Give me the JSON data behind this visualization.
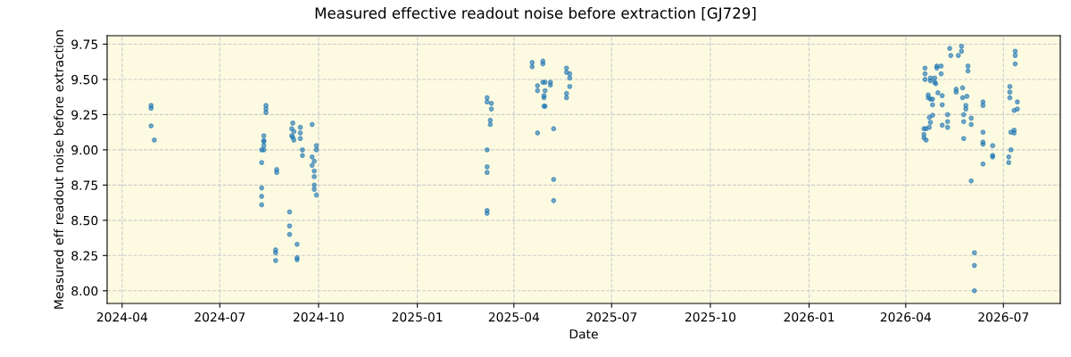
{
  "chart_data": {
    "type": "scatter",
    "title": "Measured effective readout noise before extraction [GJ729]",
    "xlabel": "Date",
    "ylabel": "Measured eff readout noise before extraction",
    "xlim": [
      "2024-03-18",
      "2026-08-23"
    ],
    "ylim": [
      7.91,
      9.81
    ],
    "xticks": [
      {
        "value": "2024-04-01",
        "label": "2024-04"
      },
      {
        "value": "2024-07-01",
        "label": "2024-07"
      },
      {
        "value": "2024-10-01",
        "label": "2024-10"
      },
      {
        "value": "2025-01-01",
        "label": "2025-01"
      },
      {
        "value": "2025-04-01",
        "label": "2025-04"
      },
      {
        "value": "2025-07-01",
        "label": "2025-07"
      },
      {
        "value": "2025-10-01",
        "label": "2025-10"
      },
      {
        "value": "2026-01-01",
        "label": "2026-01"
      },
      {
        "value": "2026-04-01",
        "label": "2026-04"
      },
      {
        "value": "2026-07-01",
        "label": "2026-07"
      }
    ],
    "yticks": [
      {
        "value": 8.0,
        "label": "8.00"
      },
      {
        "value": 8.25,
        "label": "8.25"
      },
      {
        "value": 8.5,
        "label": "8.50"
      },
      {
        "value": 8.75,
        "label": "8.75"
      },
      {
        "value": 9.0,
        "label": "9.00"
      },
      {
        "value": 9.25,
        "label": "9.25"
      },
      {
        "value": 9.5,
        "label": "9.50"
      },
      {
        "value": 9.75,
        "label": "9.75"
      }
    ],
    "grid": true,
    "marker": "circle",
    "legend": false,
    "series": [
      {
        "color": "#1f77b4",
        "x": [
          "2024-04-28",
          "2024-04-28",
          "2024-04-28",
          "2024-05-01",
          "2024-08-13",
          "2024-08-13",
          "2024-08-13",
          "2024-08-11",
          "2024-08-11",
          "2024-08-11",
          "2024-08-11",
          "2024-08-09",
          "2024-08-11",
          "2024-08-09",
          "2024-08-09",
          "2024-08-09",
          "2024-08-09",
          "2024-08-23",
          "2024-08-23",
          "2024-09-07",
          "2024-09-06",
          "2024-09-08",
          "2024-09-06",
          "2024-09-07",
          "2024-09-08",
          "2024-09-14",
          "2024-09-14",
          "2024-09-14",
          "2024-09-16",
          "2024-09-16",
          "2024-09-25",
          "2024-09-29",
          "2024-09-29",
          "2024-09-25",
          "2024-09-27",
          "2024-09-25",
          "2024-09-27",
          "2024-09-27",
          "2024-09-27",
          "2024-09-27",
          "2024-09-29",
          "2024-09-04",
          "2024-09-04",
          "2024-09-04",
          "2024-09-11",
          "2024-09-11",
          "2024-09-11",
          "2024-08-22",
          "2024-08-22",
          "2024-08-22",
          "2025-03-07",
          "2025-03-07",
          "2025-03-11",
          "2025-03-11",
          "2025-03-10",
          "2025-03-10",
          "2025-03-07",
          "2025-03-07",
          "2025-03-07",
          "2025-03-07",
          "2025-03-07",
          "2025-04-18",
          "2025-04-18",
          "2025-04-28",
          "2025-04-28",
          "2025-04-23",
          "2025-04-23",
          "2025-04-28",
          "2025-04-30",
          "2025-04-30",
          "2025-04-29",
          "2025-04-29",
          "2025-04-29",
          "2025-04-30",
          "2025-05-05",
          "2025-05-05",
          "2025-04-23",
          "2025-05-08",
          "2025-05-08",
          "2025-05-08",
          "2025-05-20",
          "2025-05-20",
          "2025-05-23",
          "2025-05-23",
          "2025-05-23",
          "2025-05-20",
          "2025-05-20",
          "2026-04-19",
          "2026-04-19",
          "2026-04-19",
          "2026-04-18",
          "2026-04-18",
          "2026-04-18",
          "2026-04-20",
          "2026-04-20",
          "2026-04-22",
          "2026-04-22",
          "2026-04-23",
          "2026-04-23",
          "2026-04-24",
          "2026-04-24",
          "2026-04-26",
          "2026-04-26",
          "2026-04-26",
          "2026-04-24",
          "2026-04-24",
          "2026-04-28",
          "2026-04-28",
          "2026-04-29",
          "2026-04-30",
          "2026-04-30",
          "2026-05-04",
          "2026-05-04",
          "2026-05-01",
          "2026-05-05",
          "2026-05-05",
          "2026-05-05",
          "2026-05-10",
          "2026-05-10",
          "2026-05-10",
          "2026-05-12",
          "2026-05-13",
          "2026-05-20",
          "2026-05-23",
          "2026-05-23",
          "2026-05-18",
          "2026-05-18",
          "2026-05-24",
          "2026-05-24",
          "2026-05-25",
          "2026-05-25",
          "2026-05-25",
          "2026-05-27",
          "2026-05-27",
          "2026-05-28",
          "2026-05-29",
          "2026-05-29",
          "2026-06-01",
          "2026-06-01",
          "2026-06-01",
          "2026-06-04",
          "2026-06-04",
          "2026-06-04",
          "2026-06-12",
          "2026-06-12",
          "2026-06-12",
          "2026-06-12",
          "2026-06-12",
          "2026-06-12",
          "2026-06-21",
          "2026-06-21",
          "2026-06-21",
          "2026-07-07",
          "2026-07-07",
          "2026-07-07",
          "2026-07-11",
          "2026-07-14",
          "2026-07-14",
          "2026-07-12",
          "2026-07-12",
          "2026-07-12",
          "2026-07-08",
          "2026-07-11",
          "2026-07-11",
          "2026-07-08",
          "2026-07-06",
          "2026-07-06"
        ],
        "values": [
          9.315,
          9.296,
          9.17,
          9.07,
          9.315,
          9.29,
          9.265,
          9.1,
          9.065,
          9.06,
          9.03,
          9.0,
          9.0,
          8.91,
          8.73,
          8.67,
          8.61,
          8.86,
          8.84,
          9.19,
          9.15,
          9.13,
          9.1,
          9.09,
          9.07,
          9.16,
          9.12,
          9.08,
          9.0,
          8.96,
          9.18,
          9.03,
          9.0,
          8.95,
          8.92,
          8.89,
          8.85,
          8.81,
          8.75,
          8.72,
          8.68,
          8.56,
          8.46,
          8.4,
          8.33,
          8.235,
          8.22,
          8.29,
          8.27,
          8.215,
          9.37,
          9.34,
          9.33,
          9.29,
          9.21,
          9.18,
          9.0,
          8.88,
          8.84,
          8.57,
          8.55,
          9.62,
          9.59,
          9.63,
          9.61,
          9.455,
          9.42,
          9.48,
          9.48,
          9.42,
          9.385,
          9.37,
          9.31,
          9.31,
          9.48,
          9.46,
          9.12,
          9.15,
          8.79,
          8.64,
          9.58,
          9.55,
          9.54,
          9.51,
          9.45,
          9.4,
          9.37,
          9.58,
          9.54,
          9.5,
          9.15,
          9.11,
          9.085,
          9.07,
          9.15,
          9.39,
          9.37,
          9.16,
          9.23,
          9.195,
          9.36,
          9.32,
          9.36,
          9.245,
          9.51,
          9.49,
          9.51,
          9.48,
          9.47,
          9.595,
          9.58,
          9.595,
          9.54,
          9.405,
          9.385,
          9.32,
          9.175,
          9.25,
          9.2,
          9.16,
          9.72,
          9.67,
          9.67,
          9.735,
          9.7,
          9.43,
          9.41,
          9.44,
          9.37,
          9.25,
          9.2,
          9.08,
          9.315,
          9.29,
          9.38,
          9.595,
          9.56,
          9.225,
          9.18,
          8.78,
          8.27,
          8.18,
          8.0,
          9.34,
          9.315,
          9.125,
          9.055,
          9.04,
          8.9,
          9.03,
          8.96,
          8.95,
          9.45,
          9.41,
          9.37,
          9.28,
          9.34,
          9.29,
          9.7,
          9.67,
          9.61,
          9.125,
          9.14,
          9.12,
          9.0,
          8.95,
          8.91
        ]
      }
    ]
  }
}
